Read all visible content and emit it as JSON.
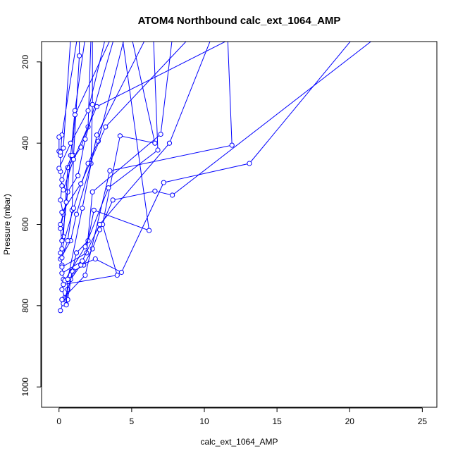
{
  "chart_data": {
    "type": "line",
    "title": "ATOM4 Northbound calc_ext_1064_AMP",
    "xlabel": "calc_ext_1064_AMP",
    "ylabel": "Pressure (mbar)",
    "xlim": [
      -1.2,
      26.0
    ],
    "ylim": [
      1050,
      150
    ],
    "y_inverted": true,
    "grid": false,
    "legend": "none",
    "x_ticks": [
      0,
      5,
      10,
      15,
      20,
      25
    ],
    "y_ticks": [
      200,
      400,
      600,
      800,
      1000
    ],
    "colors": {
      "series": "#0000ff",
      "axis": "#000000"
    },
    "series": [
      {
        "points": [
          {
            "x": 0.1,
            "y": 812
          },
          {
            "x": 0.4,
            "y": 780
          },
          {
            "x": 0.2,
            "y": 760
          },
          {
            "x": 0.3,
            "y": 735
          },
          {
            "x": 0.2,
            "y": 700
          },
          {
            "x": 0.1,
            "y": 670
          },
          {
            "x": 0.2,
            "y": 640
          },
          {
            "x": 0.1,
            "y": 610
          },
          {
            "x": 0.3,
            "y": 575
          },
          {
            "x": 0.1,
            "y": 540
          },
          {
            "x": 0.2,
            "y": 505
          },
          {
            "x": 0.1,
            "y": 470
          },
          {
            "x": 0.1,
            "y": 430
          },
          {
            "x": 0.2,
            "y": 380
          },
          {
            "x": 1.3,
            "y": 130
          }
        ]
      },
      {
        "points": [
          {
            "x": 0.5,
            "y": 797
          },
          {
            "x": 0.6,
            "y": 760
          },
          {
            "x": 1.0,
            "y": 715
          },
          {
            "x": 1.7,
            "y": 700
          },
          {
            "x": 2.3,
            "y": 660
          },
          {
            "x": 2.8,
            "y": 613
          },
          {
            "x": 3.7,
            "y": 540
          },
          {
            "x": 6.6,
            "y": 518
          },
          {
            "x": 7.8,
            "y": 528
          },
          {
            "x": 22.0,
            "y": 135
          }
        ]
      },
      {
        "points": [
          {
            "x": 0.3,
            "y": 795
          },
          {
            "x": 0.8,
            "y": 735
          },
          {
            "x": 1.5,
            "y": 700
          },
          {
            "x": 2.5,
            "y": 685
          },
          {
            "x": 4.3,
            "y": 718
          },
          {
            "x": 7.2,
            "y": 497
          },
          {
            "x": 13.1,
            "y": 450
          },
          {
            "x": 20.5,
            "y": 130
          }
        ]
      },
      {
        "points": [
          {
            "x": 0.2,
            "y": 785
          },
          {
            "x": 1.8,
            "y": 725
          },
          {
            "x": 3.5,
            "y": 468
          },
          {
            "x": 11.9,
            "y": 405
          },
          {
            "x": 11.6,
            "y": 135
          }
        ]
      },
      {
        "points": [
          {
            "x": 0.6,
            "y": 785
          },
          {
            "x": 0.9,
            "y": 715
          },
          {
            "x": 1.2,
            "y": 670
          },
          {
            "x": 2.0,
            "y": 640
          },
          {
            "x": 2.4,
            "y": 565
          },
          {
            "x": 6.2,
            "y": 615
          },
          {
            "x": 4.4,
            "y": 150
          }
        ]
      },
      {
        "points": [
          {
            "x": 0.3,
            "y": 748
          },
          {
            "x": 4.0,
            "y": 725
          },
          {
            "x": 3.0,
            "y": 600
          },
          {
            "x": 4.2,
            "y": 382
          },
          {
            "x": 6.6,
            "y": 400
          },
          {
            "x": 5.0,
            "y": 140
          }
        ]
      },
      {
        "points": [
          {
            "x": 0.4,
            "y": 738
          },
          {
            "x": 1.8,
            "y": 655
          },
          {
            "x": 3.4,
            "y": 510
          },
          {
            "x": 6.8,
            "y": 417
          },
          {
            "x": 6.5,
            "y": 140
          }
        ]
      },
      {
        "points": [
          {
            "x": 0.2,
            "y": 705
          },
          {
            "x": 1.9,
            "y": 670
          },
          {
            "x": 2.3,
            "y": 520
          },
          {
            "x": 7.0,
            "y": 378
          },
          {
            "x": 7.8,
            "y": 140
          }
        ]
      },
      {
        "points": [
          {
            "x": 0.1,
            "y": 685
          },
          {
            "x": 0.8,
            "y": 640
          },
          {
            "x": 1.2,
            "y": 575
          },
          {
            "x": 2.2,
            "y": 450
          },
          {
            "x": 2.3,
            "y": 305
          },
          {
            "x": 2.3,
            "y": 140
          }
        ]
      },
      {
        "points": [
          {
            "x": 0.2,
            "y": 682
          },
          {
            "x": 0.6,
            "y": 640
          },
          {
            "x": 0.9,
            "y": 565
          },
          {
            "x": 1.0,
            "y": 430
          },
          {
            "x": 1.4,
            "y": 185
          },
          {
            "x": 1.4,
            "y": 130
          }
        ]
      },
      {
        "points": [
          {
            "x": 0.2,
            "y": 660
          },
          {
            "x": 1.0,
            "y": 560
          },
          {
            "x": 2.0,
            "y": 450
          },
          {
            "x": 2.7,
            "y": 395
          },
          {
            "x": 4.5,
            "y": 140
          }
        ]
      },
      {
        "points": [
          {
            "x": 0.3,
            "y": 630
          },
          {
            "x": 0.6,
            "y": 460
          },
          {
            "x": 1.5,
            "y": 410
          },
          {
            "x": 2.0,
            "y": 360
          },
          {
            "x": 2.2,
            "y": 140
          }
        ]
      },
      {
        "points": [
          {
            "x": 0.2,
            "y": 640
          },
          {
            "x": 0.6,
            "y": 520
          },
          {
            "x": 1.3,
            "y": 480
          },
          {
            "x": 1.8,
            "y": 390
          },
          {
            "x": 3.8,
            "y": 140
          }
        ]
      },
      {
        "points": [
          {
            "x": 0.1,
            "y": 600
          },
          {
            "x": 0.5,
            "y": 545
          },
          {
            "x": 0.8,
            "y": 430
          },
          {
            "x": 1.1,
            "y": 320
          },
          {
            "x": 1.8,
            "y": 140
          }
        ]
      },
      {
        "points": [
          {
            "x": 0.2,
            "y": 570
          },
          {
            "x": 1.5,
            "y": 500
          },
          {
            "x": 3.2,
            "y": 360
          },
          {
            "x": 9.0,
            "y": 140
          }
        ]
      },
      {
        "points": [
          {
            "x": 0.3,
            "y": 515
          },
          {
            "x": 1.0,
            "y": 440
          },
          {
            "x": 2.6,
            "y": 310
          },
          {
            "x": 12.0,
            "y": 140
          }
        ]
      },
      {
        "points": [
          {
            "x": 0.2,
            "y": 490
          },
          {
            "x": 0.9,
            "y": 430
          },
          {
            "x": 1.1,
            "y": 330
          },
          {
            "x": 3.6,
            "y": 140
          }
        ]
      },
      {
        "points": [
          {
            "x": 0.0,
            "y": 462
          },
          {
            "x": 0.8,
            "y": 400
          },
          {
            "x": 2.0,
            "y": 320
          },
          {
            "x": 3.2,
            "y": 140
          }
        ]
      },
      {
        "points": [
          {
            "x": 0.0,
            "y": 385
          },
          {
            "x": 0.0,
            "y": 420
          },
          {
            "x": 0.1,
            "y": 422
          },
          {
            "x": 0.3,
            "y": 412
          },
          {
            "x": 0.8,
            "y": 140
          }
        ]
      },
      {
        "points": [
          {
            "x": 0.2,
            "y": 720
          },
          {
            "x": 1.6,
            "y": 690
          },
          {
            "x": 2.8,
            "y": 600
          },
          {
            "x": 7.6,
            "y": 400
          },
          {
            "x": 10.5,
            "y": 140
          }
        ]
      },
      {
        "points": [
          {
            "x": 0.5,
            "y": 798
          },
          {
            "x": 0.6,
            "y": 735
          },
          {
            "x": 1.6,
            "y": 560
          },
          {
            "x": 2.6,
            "y": 380
          },
          {
            "x": 6.0,
            "y": 140
          }
        ]
      }
    ]
  }
}
